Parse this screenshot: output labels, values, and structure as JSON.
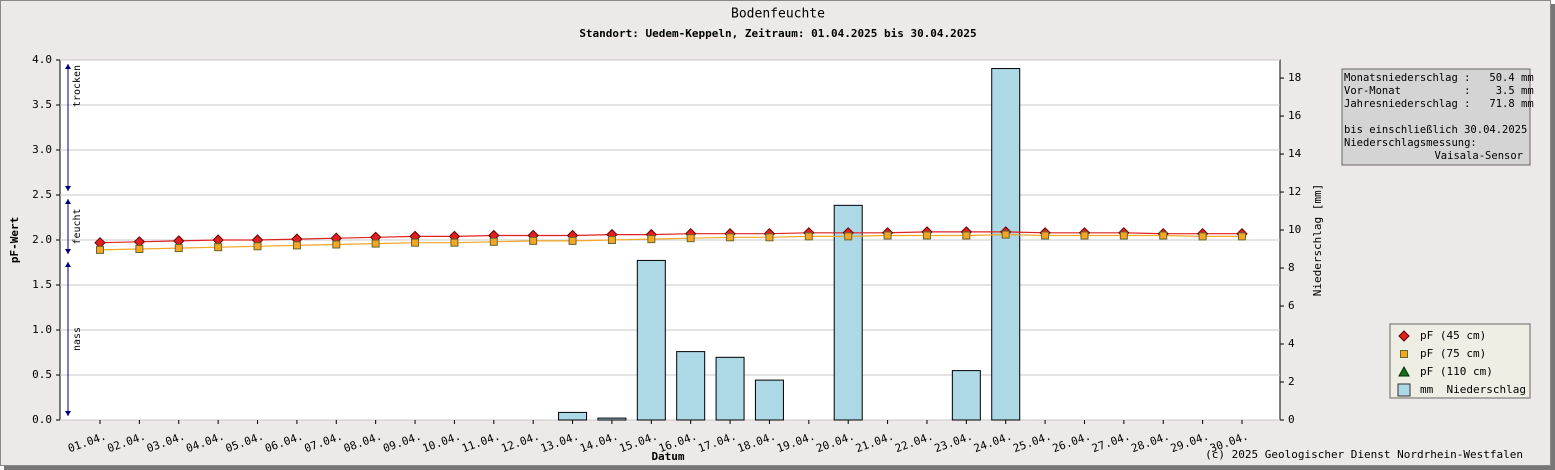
{
  "chart_data": {
    "type": "line",
    "title": "Bodenfeuchte",
    "subtitle": "Standort: Uedem-Keppeln, Zeitraum: 01.04.2025 bis 30.04.2025",
    "xlabel": "Datum",
    "ylabel": "pF-Wert",
    "y2label": "Niederschlag [mm]",
    "categories": [
      "01.04.",
      "02.04.",
      "03.04.",
      "04.04.",
      "05.04.",
      "06.04.",
      "07.04.",
      "08.04.",
      "09.04.",
      "10.04.",
      "11.04.",
      "12.04.",
      "13.04.",
      "14.04.",
      "15.04.",
      "16.04.",
      "17.04.",
      "18.04.",
      "19.04.",
      "20.04.",
      "21.04.",
      "22.04.",
      "23.04.",
      "24.04.",
      "25.04.",
      "26.04.",
      "27.04.",
      "28.04.",
      "29.04.",
      "30.04."
    ],
    "series": [
      {
        "name": "pF (45 cm)",
        "color": "#e02020",
        "marker": "diamond",
        "values": [
          1.97,
          1.98,
          1.99,
          2.0,
          2.0,
          2.01,
          2.02,
          2.03,
          2.04,
          2.04,
          2.05,
          2.05,
          2.05,
          2.06,
          2.06,
          2.07,
          2.07,
          2.07,
          2.08,
          2.08,
          2.08,
          2.09,
          2.09,
          2.09,
          2.08,
          2.08,
          2.08,
          2.07,
          2.07,
          2.07
        ]
      },
      {
        "name": "pF (75 cm)",
        "color": "#f5a623",
        "marker": "square",
        "values": [
          1.89,
          1.9,
          1.91,
          1.92,
          1.93,
          1.94,
          1.95,
          1.96,
          1.97,
          1.97,
          1.98,
          1.99,
          1.99,
          2.0,
          2.01,
          2.02,
          2.03,
          2.03,
          2.04,
          2.04,
          2.05,
          2.05,
          2.05,
          2.06,
          2.05,
          2.05,
          2.05,
          2.05,
          2.04,
          2.04
        ]
      },
      {
        "name": "pF (110 cm)",
        "color": "#1a6b1a",
        "marker": "triangle",
        "values": [
          null,
          null,
          null,
          null,
          null,
          null,
          null,
          null,
          null,
          null,
          null,
          null,
          null,
          null,
          null,
          null,
          null,
          null,
          null,
          null,
          null,
          null,
          null,
          null,
          null,
          null,
          null,
          null,
          null,
          null
        ]
      },
      {
        "name": "mm  Niederschlag",
        "color": "#add8e6",
        "marker": "bar",
        "axis": "y2",
        "values": [
          0,
          0,
          0,
          0,
          0,
          0,
          0,
          0,
          0,
          0,
          0,
          0,
          0.4,
          0.1,
          8.4,
          3.6,
          3.3,
          2.1,
          0,
          11.3,
          0,
          0,
          2.6,
          18.5,
          0,
          0,
          0,
          0,
          0,
          0
        ]
      }
    ],
    "ylim": [
      0,
      4
    ],
    "yticks": [
      {
        "value": 0,
        "label": "0.0"
      },
      0.5,
      {
        "value": 1,
        "label": "1.0"
      },
      1.5,
      {
        "value": 2,
        "label": "2.0"
      },
      2.5,
      {
        "value": 3,
        "label": "3.0"
      },
      3.5,
      {
        "value": 4,
        "label": "4.0"
      }
    ],
    "y2lim": [
      0,
      18.95
    ],
    "y2ticks": [
      0,
      2,
      4,
      6,
      8,
      10,
      12,
      14,
      16,
      18
    ],
    "grid": true,
    "legend": "lower right",
    "zones": [
      {
        "label": "nass",
        "from": 0,
        "to": 1.8
      },
      {
        "label": "feucht",
        "from": 1.8,
        "to": 2.5
      },
      {
        "label": "trocken",
        "from": 2.5,
        "to": 4
      }
    ],
    "info": {
      "totals": [
        "Monatsniederschlag :   50.4 mm",
        "Vor-Monat          :    3.5 mm",
        "Jahresniederschlag :   71.8 mm"
      ],
      "note": [
        "bis einschließlich 30.04.2025",
        "Niederschlagsmessung:"
      ],
      "sensor": "Vaisala-Sensor"
    },
    "footer": "(c) 2025 Geologischer Dienst Nordrhein-Westfalen"
  }
}
